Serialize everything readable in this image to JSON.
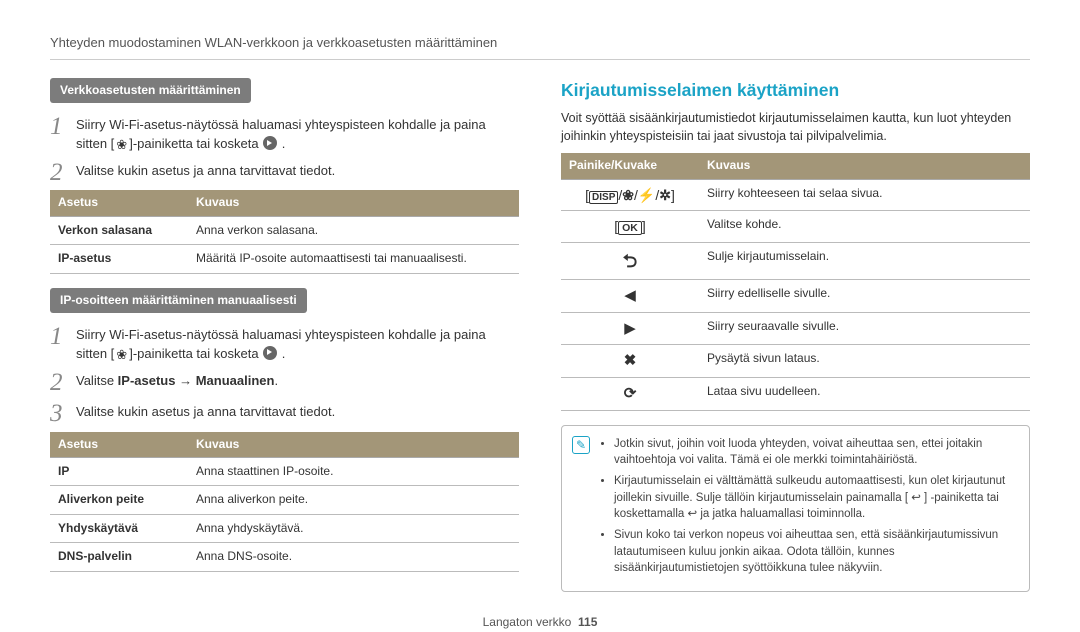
{
  "header": "Yhteyden muodostaminen WLAN-verkkoon ja verkkoasetusten määrittäminen",
  "left": {
    "section1_label": "Verkkoasetusten määrittäminen",
    "steps1": {
      "s1a": "Siirry Wi-Fi-asetus-näytössä haluamasi yhteyspisteen kohdalle ja paina sitten [",
      "s1b": "]-painiketta tai kosketa ",
      "s2": "Valitse kukin asetus ja anna tarvittavat tiedot."
    },
    "table1": {
      "h1": "Asetus",
      "h2": "Kuvaus",
      "rows": [
        {
          "a": "Verkon salasana",
          "b": "Anna verkon salasana."
        },
        {
          "a": "IP-asetus",
          "b": "Määritä IP-osoite automaattisesti tai manuaalisesti."
        }
      ]
    },
    "section2_label": "IP-osoitteen määrittäminen manuaalisesti",
    "steps2": {
      "s1a": "Siirry Wi-Fi-asetus-näytössä haluamasi yhteyspisteen kohdalle ja paina sitten [",
      "s1b": "]-painiketta tai kosketa ",
      "s2_prefix": "Valitse ",
      "s2_b1": "IP-asetus",
      "s2_arrow": " → ",
      "s2_b2": "Manuaalinen",
      "s2_suffix": ".",
      "s3": "Valitse kukin asetus ja anna tarvittavat tiedot."
    },
    "table2": {
      "h1": "Asetus",
      "h2": "Kuvaus",
      "rows": [
        {
          "a": "IP",
          "b": "Anna staattinen IP-osoite."
        },
        {
          "a": "Aliverkon peite",
          "b": "Anna aliverkon peite."
        },
        {
          "a": "Yhdyskäytävä",
          "b": "Anna yhdyskäytävä."
        },
        {
          "a": "DNS-palvelin",
          "b": "Anna DNS-osoite."
        }
      ]
    }
  },
  "right": {
    "heading": "Kirjautumisselaimen käyttäminen",
    "intro": "Voit syöttää sisäänkirjautumistiedot kirjautumisselaimen kautta, kun luot yhteyden joihinkin yhteyspisteisiin tai jaat sivustoja tai pilvipalvelimia.",
    "table": {
      "h1": "Painike/Kuvake",
      "h2": "Kuvaus",
      "rows": [
        {
          "b": "Siirry kohteeseen tai selaa sivua."
        },
        {
          "b": "Valitse kohde."
        },
        {
          "b": "Sulje kirjautumisselain."
        },
        {
          "b": "Siirry edelliselle sivulle."
        },
        {
          "b": "Siirry seuraavalle sivulle."
        },
        {
          "b": "Pysäytä sivun lataus."
        },
        {
          "b": "Lataa sivu uudelleen."
        }
      ]
    },
    "notes": [
      "Jotkin sivut, joihin voit luoda yhteyden, voivat aiheuttaa sen, ettei joitakin vaihtoehtoja voi valita. Tämä ei ole merkki toimintahäiriöstä.",
      "Kirjautumisselain ei välttämättä sulkeudu automaattisesti, kun olet kirjautunut joillekin sivuille. Sulje tällöin kirjautumisselain painamalla [ ↩ ] -painiketta tai koskettamalla ↩ ja jatka haluamallasi toiminnolla.",
      "Sivun koko tai verkon nopeus voi aiheuttaa sen, että sisäänkirjautumissivun latautumiseen kuluu jonkin aikaa. Odota tällöin, kunnes sisäänkirjautumistietojen syöttöikkuna tulee näkyviin."
    ]
  },
  "footer_label": "Langaton verkko",
  "footer_page": "115"
}
